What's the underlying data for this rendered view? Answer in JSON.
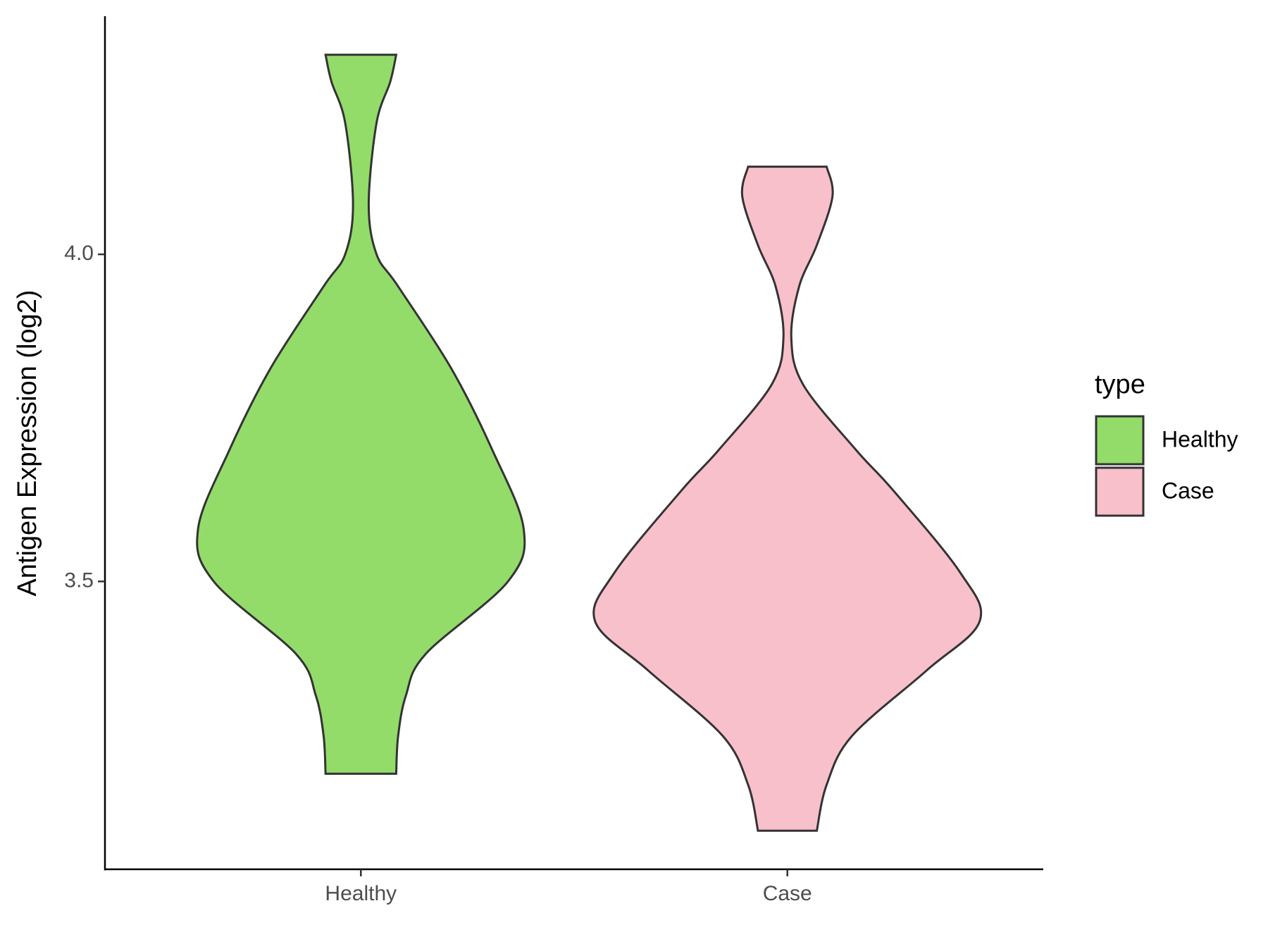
{
  "chart_data": {
    "type": "violin",
    "y_label": "Antigen Expression (log2)",
    "categories": [
      "Healthy",
      "Case"
    ],
    "legend_title": "type",
    "legend_position": "right",
    "ylim": [
      3.06,
      4.364
    ],
    "yticks": [
      {
        "value": 3.5,
        "label": "3.5"
      },
      {
        "value": 4,
        "label": "4.0"
      }
    ],
    "series": [
      {
        "name": "Healthy",
        "color": "#93dc6a",
        "y": [
          4.305,
          4.264,
          4.201,
          4.076,
          4.0,
          3.951,
          3.826,
          3.701,
          3.58,
          3.5,
          3.389,
          3.326,
          3.264,
          3.206
        ],
        "density": [
          0.18,
          0.15,
          0.08,
          0.04,
          0.08,
          0.19,
          0.46,
          0.67,
          0.83,
          0.75,
          0.33,
          0.23,
          0.19,
          0.18
        ]
      },
      {
        "name": "Case",
        "color": "#f8c0cb",
        "y": [
          4.134,
          4.089,
          4.014,
          3.951,
          3.873,
          3.801,
          3.701,
          3.639,
          3.514,
          3.439,
          3.364,
          3.264,
          3.189,
          3.119
        ],
        "density": [
          0.2,
          0.23,
          0.15,
          0.06,
          0.02,
          0.08,
          0.35,
          0.54,
          0.88,
          0.98,
          0.71,
          0.33,
          0.2,
          0.15
        ]
      }
    ]
  }
}
